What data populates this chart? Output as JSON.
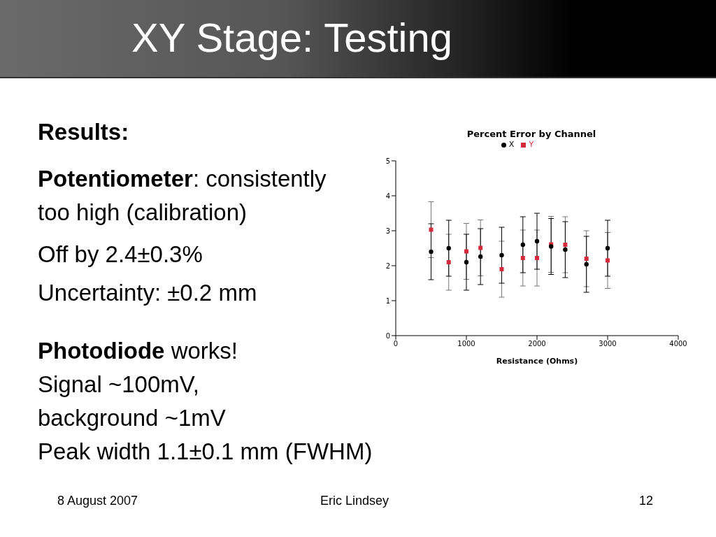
{
  "chart_data": {
    "type": "scatter",
    "title": "Percent Error by Channel",
    "xlabel": "Resistance (Ohms)",
    "x": [
      500,
      750,
      1000,
      1200,
      1500,
      1800,
      2000,
      2200,
      2400,
      2700,
      3000
    ],
    "series": [
      {
        "name": "X",
        "color": "#000000",
        "marker": "circle",
        "values": [
          2.4,
          2.5,
          2.1,
          2.26,
          2.3,
          2.6,
          2.7,
          2.55,
          2.46,
          2.04,
          2.5
        ],
        "errors": [
          0.8,
          0.8,
          0.8,
          0.8,
          0.8,
          0.8,
          0.8,
          0.8,
          0.8,
          0.8,
          0.8
        ]
      },
      {
        "name": "Y",
        "color": "#d42a3c",
        "marker": "square",
        "values": [
          3.03,
          2.1,
          2.41,
          2.51,
          1.9,
          2.22,
          2.22,
          2.61,
          2.6,
          2.2,
          2.15
        ],
        "errors": [
          0.8,
          0.8,
          0.8,
          0.8,
          0.8,
          0.8,
          0.8,
          0.8,
          0.8,
          0.8,
          0.8
        ]
      }
    ],
    "xlim": [
      0,
      4000
    ],
    "xticks": [
      0,
      1000,
      2000,
      3000,
      4000
    ],
    "ylim": [
      0,
      5
    ],
    "yticks": [
      0,
      1,
      2,
      3,
      4,
      5
    ],
    "grid": false,
    "legend": "top",
    "annotations": [
      "XY Stage: Testing",
      "Results:",
      "Potentiometer: consistently too high (calibration)",
      "Off by 2.4±0.3%",
      "Uncertainty: ±0.2 mm",
      "Photodiode works!",
      "Signal ~100mV, background ~1mV",
      "Peak width 1.1±0.1 mm (FWHM)",
      "8 August 2007",
      "Eric Lindsey",
      "12"
    ]
  }
}
